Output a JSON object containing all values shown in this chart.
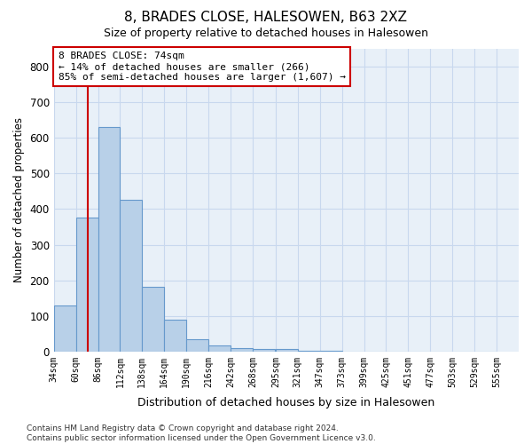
{
  "title": "8, BRADES CLOSE, HALESOWEN, B63 2XZ",
  "subtitle": "Size of property relative to detached houses in Halesowen",
  "xlabel": "Distribution of detached houses by size in Halesowen",
  "ylabel": "Number of detached properties",
  "bar_lefts": [
    34,
    60,
    86,
    112,
    138,
    164,
    190,
    216,
    242,
    268,
    295,
    321,
    347,
    373,
    399,
    425,
    451,
    477,
    503,
    529
  ],
  "bar_values": [
    128,
    375,
    630,
    425,
    182,
    88,
    35,
    18,
    10,
    6,
    6,
    2,
    2,
    0,
    0,
    0,
    0,
    0,
    0,
    0
  ],
  "bin_width": 26,
  "tick_labels": [
    "34sqm",
    "60sqm",
    "86sqm",
    "112sqm",
    "138sqm",
    "164sqm",
    "190sqm",
    "216sqm",
    "242sqm",
    "268sqm",
    "295sqm",
    "321sqm",
    "347sqm",
    "373sqm",
    "399sqm",
    "425sqm",
    "451sqm",
    "477sqm",
    "503sqm",
    "529sqm",
    "555sqm"
  ],
  "tick_positions": [
    34,
    60,
    86,
    112,
    138,
    164,
    190,
    216,
    242,
    268,
    295,
    321,
    347,
    373,
    399,
    425,
    451,
    477,
    503,
    529,
    555
  ],
  "bar_color": "#b8d0e8",
  "bar_edge_color": "#6699cc",
  "vline_x": 74,
  "vline_color": "#cc0000",
  "ylim": [
    0,
    850
  ],
  "yticks": [
    0,
    100,
    200,
    300,
    400,
    500,
    600,
    700,
    800
  ],
  "xlim": [
    34,
    581
  ],
  "annotation_text": "8 BRADES CLOSE: 74sqm\n← 14% of detached houses are smaller (266)\n85% of semi-detached houses are larger (1,607) →",
  "annotation_box_color": "#ffffff",
  "annotation_box_edge": "#cc0000",
  "footer_line1": "Contains HM Land Registry data © Crown copyright and database right 2024.",
  "footer_line2": "Contains public sector information licensed under the Open Government Licence v3.0.",
  "grid_color": "#c8d8ee",
  "background_color": "#e8f0f8"
}
